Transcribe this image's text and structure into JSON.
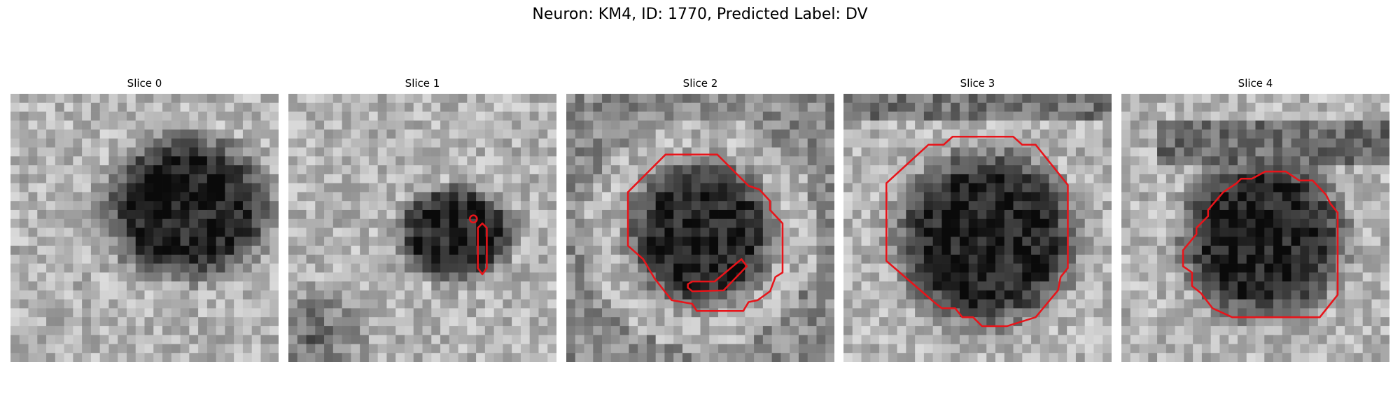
{
  "title": "Neuron: KM4, ID: 1770, Predicted Label: DV",
  "panels": [
    {
      "title": "Slice 0"
    },
    {
      "title": "Slice 1"
    },
    {
      "title": "Slice 2"
    },
    {
      "title": "Slice 3"
    },
    {
      "title": "Slice 4"
    }
  ]
}
